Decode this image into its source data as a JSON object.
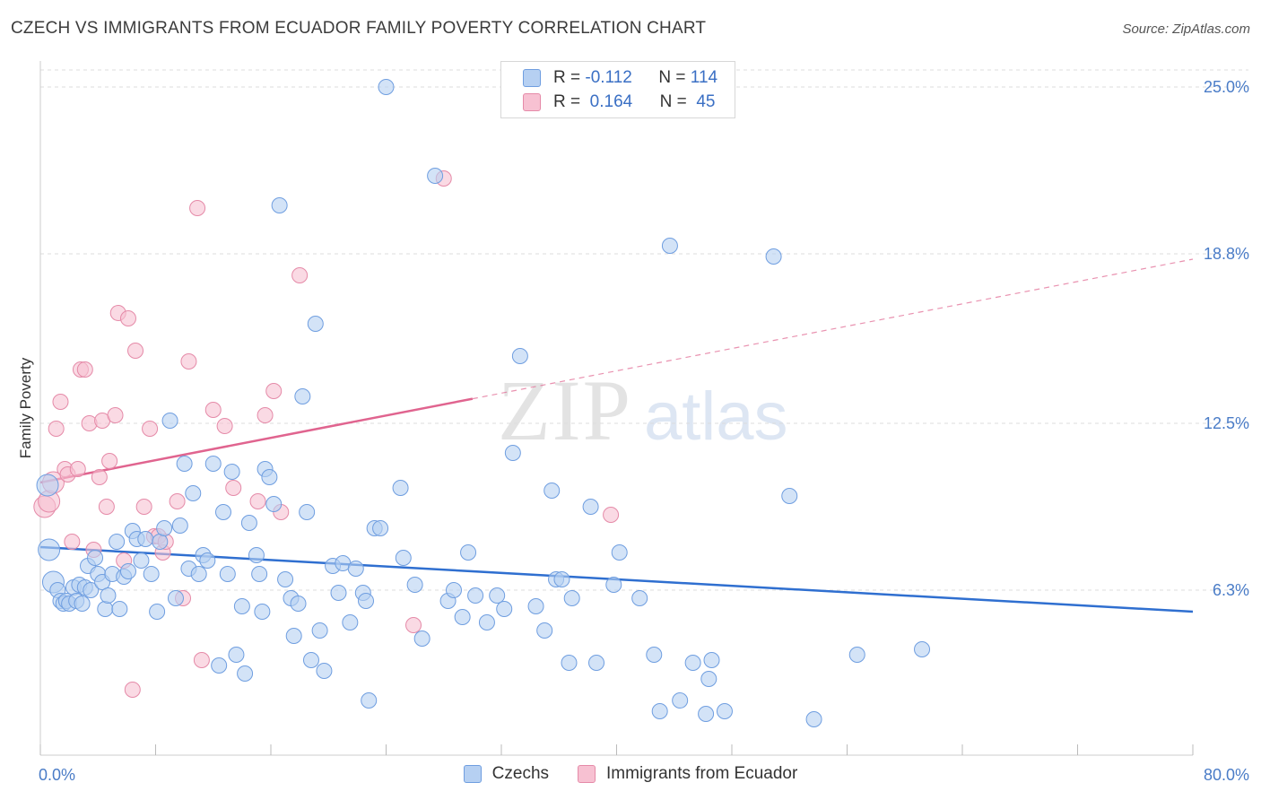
{
  "header": {
    "title": "CZECH VS IMMIGRANTS FROM ECUADOR FAMILY POVERTY CORRELATION CHART",
    "source": "Source: ZipAtlas.com"
  },
  "legend_top": {
    "rows": [
      {
        "r_label": "R =",
        "r_value": "-0.112",
        "n_label": "N =",
        "n_value": "114"
      },
      {
        "r_label": "R =",
        "r_value": "0.164",
        "n_label": "N =",
        "n_value": "45"
      }
    ]
  },
  "watermark": {
    "zip": "ZIP",
    "atlas": "atlas"
  },
  "colors": {
    "czech_fill": "#b6d0f2",
    "czech_stroke": "#6f9ee0",
    "czech_line": "#2f6fd0",
    "ecuador_fill": "#f7c1d2",
    "ecuador_stroke": "#e58aa8",
    "ecuador_line": "#e0648f",
    "grid": "#dcdcdc",
    "tick_text": "#4a7cc7"
  },
  "chart_data": {
    "type": "scatter",
    "title": "CZECH VS IMMIGRANTS FROM ECUADOR FAMILY POVERTY CORRELATION CHART",
    "xlabel": "",
    "ylabel": "Family Poverty",
    "xlim": [
      0,
      80
    ],
    "ylim": [
      0,
      26.5
    ],
    "x_tick_labels": [
      "0.0%",
      "80.0%"
    ],
    "y_ticks": [
      6.3,
      12.5,
      18.8,
      25.0
    ],
    "y_tick_labels": [
      "6.3%",
      "12.5%",
      "18.8%",
      "25.0%"
    ],
    "grid": "horizontal dashed",
    "legend_position": "bottom-center",
    "series": [
      {
        "name": "Czechs",
        "r": -0.112,
        "n": 114,
        "trend": {
          "x": [
            0,
            80
          ],
          "y": [
            7.9,
            5.5
          ],
          "dashed_from": null
        },
        "points": [
          [
            0.5,
            10.2
          ],
          [
            0.6,
            7.8
          ],
          [
            0.9,
            6.6
          ],
          [
            1.2,
            6.3
          ],
          [
            1.4,
            5.9
          ],
          [
            1.6,
            5.8
          ],
          [
            1.8,
            5.9
          ],
          [
            2.0,
            5.8
          ],
          [
            2.3,
            6.4
          ],
          [
            2.5,
            5.9
          ],
          [
            2.7,
            6.5
          ],
          [
            2.9,
            5.8
          ],
          [
            3.1,
            6.4
          ],
          [
            3.3,
            7.2
          ],
          [
            3.5,
            6.3
          ],
          [
            3.8,
            7.5
          ],
          [
            4.0,
            6.9
          ],
          [
            4.3,
            6.6
          ],
          [
            4.5,
            5.6
          ],
          [
            4.7,
            6.1
          ],
          [
            5.0,
            6.9
          ],
          [
            5.3,
            8.1
          ],
          [
            5.5,
            5.6
          ],
          [
            5.8,
            6.8
          ],
          [
            6.1,
            7.0
          ],
          [
            6.4,
            8.5
          ],
          [
            6.7,
            8.2
          ],
          [
            7.0,
            7.4
          ],
          [
            7.3,
            8.2
          ],
          [
            7.7,
            6.9
          ],
          [
            8.1,
            5.5
          ],
          [
            8.3,
            8.1
          ],
          [
            8.6,
            8.6
          ],
          [
            9.0,
            12.6
          ],
          [
            9.4,
            6.0
          ],
          [
            9.7,
            8.7
          ],
          [
            10.0,
            11.0
          ],
          [
            10.3,
            7.1
          ],
          [
            10.6,
            9.9
          ],
          [
            11.0,
            6.9
          ],
          [
            11.3,
            7.6
          ],
          [
            11.6,
            7.4
          ],
          [
            12.0,
            11.0
          ],
          [
            12.4,
            3.5
          ],
          [
            12.7,
            9.2
          ],
          [
            13.0,
            6.9
          ],
          [
            13.3,
            10.7
          ],
          [
            13.6,
            3.9
          ],
          [
            14.0,
            5.7
          ],
          [
            14.2,
            3.2
          ],
          [
            14.5,
            8.8
          ],
          [
            15.0,
            7.6
          ],
          [
            15.2,
            6.9
          ],
          [
            15.4,
            5.5
          ],
          [
            15.6,
            10.8
          ],
          [
            15.9,
            10.5
          ],
          [
            16.2,
            9.5
          ],
          [
            16.6,
            20.6
          ],
          [
            17.0,
            6.7
          ],
          [
            17.4,
            6.0
          ],
          [
            17.6,
            4.6
          ],
          [
            17.9,
            5.8
          ],
          [
            18.2,
            13.5
          ],
          [
            18.5,
            9.2
          ],
          [
            18.8,
            3.7
          ],
          [
            19.1,
            16.2
          ],
          [
            19.4,
            4.8
          ],
          [
            19.7,
            3.3
          ],
          [
            20.3,
            7.2
          ],
          [
            20.7,
            6.2
          ],
          [
            21.0,
            7.3
          ],
          [
            21.5,
            5.1
          ],
          [
            21.9,
            7.1
          ],
          [
            22.4,
            6.2
          ],
          [
            22.6,
            5.9
          ],
          [
            22.8,
            2.2
          ],
          [
            23.2,
            8.6
          ],
          [
            23.6,
            8.6
          ],
          [
            24.0,
            25.0
          ],
          [
            25.0,
            10.1
          ],
          [
            25.2,
            7.5
          ],
          [
            26.0,
            6.5
          ],
          [
            26.5,
            4.5
          ],
          [
            27.4,
            21.7
          ],
          [
            28.3,
            5.9
          ],
          [
            28.7,
            6.3
          ],
          [
            29.3,
            5.3
          ],
          [
            29.7,
            7.7
          ],
          [
            30.2,
            6.1
          ],
          [
            31.0,
            5.1
          ],
          [
            31.7,
            6.1
          ],
          [
            32.2,
            5.6
          ],
          [
            32.8,
            11.4
          ],
          [
            33.3,
            15.0
          ],
          [
            34.4,
            5.7
          ],
          [
            35.0,
            4.8
          ],
          [
            35.5,
            10.0
          ],
          [
            35.8,
            6.7
          ],
          [
            36.2,
            6.7
          ],
          [
            36.7,
            3.6
          ],
          [
            36.9,
            6.0
          ],
          [
            38.2,
            9.4
          ],
          [
            38.6,
            3.6
          ],
          [
            39.8,
            6.5
          ],
          [
            40.2,
            7.7
          ],
          [
            41.6,
            6.0
          ],
          [
            42.6,
            3.9
          ],
          [
            43.0,
            1.8
          ],
          [
            43.7,
            19.1
          ],
          [
            44.4,
            2.2
          ],
          [
            45.3,
            3.6
          ],
          [
            46.2,
            1.7
          ],
          [
            46.4,
            3.0
          ],
          [
            46.6,
            3.7
          ],
          [
            47.5,
            1.8
          ],
          [
            50.9,
            18.7
          ],
          [
            52.0,
            9.8
          ],
          [
            53.7,
            1.5
          ],
          [
            56.7,
            3.9
          ],
          [
            61.2,
            4.1
          ]
        ]
      },
      {
        "name": "Immigrants from Ecuador",
        "r": 0.164,
        "n": 45,
        "trend": {
          "x": [
            0,
            80
          ],
          "y": [
            10.3,
            18.6
          ],
          "dashed_from": 30
        },
        "points": [
          [
            0.3,
            9.4
          ],
          [
            0.6,
            9.6
          ],
          [
            0.9,
            10.3
          ],
          [
            1.1,
            12.3
          ],
          [
            1.4,
            13.3
          ],
          [
            1.7,
            10.8
          ],
          [
            1.9,
            10.6
          ],
          [
            2.2,
            8.1
          ],
          [
            2.6,
            10.8
          ],
          [
            2.8,
            14.5
          ],
          [
            3.1,
            14.5
          ],
          [
            3.4,
            12.5
          ],
          [
            3.7,
            7.8
          ],
          [
            4.1,
            10.5
          ],
          [
            4.3,
            12.6
          ],
          [
            4.6,
            9.4
          ],
          [
            4.8,
            11.1
          ],
          [
            5.2,
            12.8
          ],
          [
            5.4,
            16.6
          ],
          [
            5.8,
            7.4
          ],
          [
            6.1,
            16.4
          ],
          [
            6.4,
            2.6
          ],
          [
            6.6,
            15.2
          ],
          [
            7.2,
            9.4
          ],
          [
            7.6,
            12.3
          ],
          [
            7.9,
            8.3
          ],
          [
            8.2,
            8.3
          ],
          [
            8.5,
            7.7
          ],
          [
            8.7,
            8.1
          ],
          [
            9.5,
            9.6
          ],
          [
            9.9,
            6.0
          ],
          [
            10.3,
            14.8
          ],
          [
            10.9,
            20.5
          ],
          [
            11.2,
            3.7
          ],
          [
            12.0,
            13.0
          ],
          [
            12.8,
            12.4
          ],
          [
            13.4,
            10.1
          ],
          [
            15.1,
            9.6
          ],
          [
            15.6,
            12.8
          ],
          [
            16.2,
            13.7
          ],
          [
            16.7,
            9.2
          ],
          [
            18.0,
            18.0
          ],
          [
            25.9,
            5.0
          ],
          [
            28.0,
            21.6
          ],
          [
            39.6,
            9.1
          ]
        ]
      }
    ]
  },
  "bottom_legend": {
    "items": [
      {
        "label": "Czechs"
      },
      {
        "label": "Immigrants from Ecuador"
      }
    ]
  }
}
